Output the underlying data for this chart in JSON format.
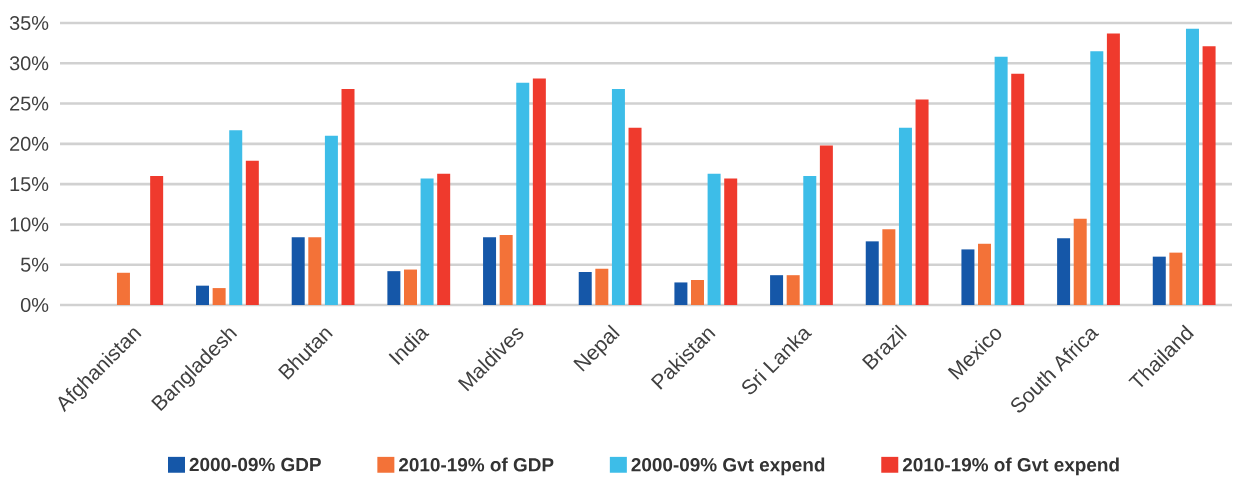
{
  "chart_data": {
    "type": "bar",
    "categories": [
      "Afghanistan",
      "Bangladesh",
      "Bhutan",
      "India",
      "Maldives",
      "Nepal",
      "Pakistan",
      "Sri Lanka",
      "Brazil",
      "Mexico",
      "South Africa",
      "Thailand"
    ],
    "series": [
      {
        "name": "2000-09% GDP",
        "color": "#1557a8",
        "values": [
          null,
          2.4,
          8.4,
          4.2,
          8.4,
          4.1,
          2.8,
          3.7,
          7.9,
          6.9,
          8.3,
          6.0
        ]
      },
      {
        "name": "2010-19% of GDP",
        "color": "#f37238",
        "values": [
          4.0,
          2.1,
          8.4,
          4.4,
          8.7,
          4.5,
          3.1,
          3.7,
          9.4,
          7.6,
          10.7,
          6.5
        ]
      },
      {
        "name": "2000-09% Gvt expend",
        "color": "#3dbde8",
        "values": [
          null,
          21.7,
          21.0,
          15.7,
          27.6,
          26.8,
          16.3,
          16.0,
          22.0,
          30.8,
          31.5,
          34.3
        ]
      },
      {
        "name": "2010-19% of Gvt expend",
        "color": "#ef3a2d",
        "values": [
          16.0,
          17.9,
          26.8,
          16.3,
          28.1,
          22.0,
          15.7,
          19.8,
          25.5,
          28.7,
          33.7,
          32.1
        ]
      }
    ],
    "ylim": [
      0,
      35
    ],
    "yticks": [
      {
        "value": 0,
        "label": "0%"
      },
      {
        "value": 5,
        "label": "5%"
      },
      {
        "value": 10,
        "label": "10%"
      },
      {
        "value": 15,
        "label": "15%"
      },
      {
        "value": 20,
        "label": "20%"
      },
      {
        "value": 25,
        "label": "25%"
      },
      {
        "value": 30,
        "label": "30%"
      },
      {
        "value": 35,
        "label": "35%"
      }
    ],
    "grid": "y",
    "legend": "bottom"
  }
}
